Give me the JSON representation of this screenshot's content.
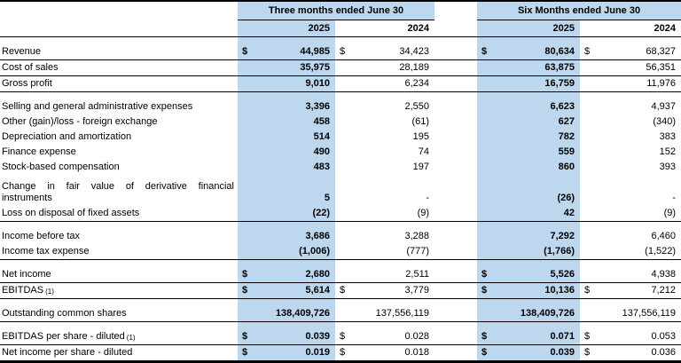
{
  "table": {
    "accent_color": "#BDD7EE",
    "col_groups": [
      {
        "title": "Three months ended June 30",
        "years": [
          "2025",
          "2024"
        ]
      },
      {
        "title": "Six Months ended June 30",
        "years": [
          "2025",
          "2024"
        ]
      }
    ],
    "rows": [
      {
        "spacer": true
      },
      {
        "label": "Revenue",
        "d": [
          "$",
          "$",
          "$",
          "$"
        ],
        "v": [
          "44,985",
          "34,423",
          "80,634",
          "68,327"
        ],
        "border": true
      },
      {
        "label": "Cost of sales",
        "v": [
          "35,975",
          "28,189",
          "63,875",
          "56,351"
        ],
        "border": true
      },
      {
        "label": "Gross profit",
        "v": [
          "9,010",
          "6,234",
          "16,759",
          "11,976"
        ],
        "border": true
      },
      {
        "spacer": true
      },
      {
        "label": "Selling and general administrative expenses",
        "v": [
          "3,396",
          "2,550",
          "6,623",
          "4,937"
        ]
      },
      {
        "label": "Other (gain)/loss - foreign exchange",
        "v": [
          "458",
          "(61)",
          "627",
          "(340)"
        ]
      },
      {
        "label": "Depreciation and amortization",
        "v": [
          "514",
          "195",
          "782",
          "383"
        ]
      },
      {
        "label": "Finance expense",
        "v": [
          "490",
          "74",
          "559",
          "152"
        ]
      },
      {
        "label": "Stock-based compensation",
        "v": [
          "483",
          "197",
          "860",
          "393"
        ]
      },
      {
        "label": "Change in fair value of derivative financial instruments",
        "tall": true,
        "v": [
          "5",
          "-",
          "(26)",
          "-"
        ]
      },
      {
        "label": "Loss on disposal of fixed assets",
        "v": [
          "(22)",
          "(9)",
          "42",
          "(9)"
        ],
        "border": true
      },
      {
        "spacer": true
      },
      {
        "label": "Income before tax",
        "v": [
          "3,686",
          "3,288",
          "7,292",
          "6,460"
        ]
      },
      {
        "label": "Income tax expense",
        "v": [
          "(1,006)",
          "(777)",
          "(1,766)",
          "(1,522)"
        ],
        "border": true
      },
      {
        "spacer": true
      },
      {
        "label": "Net income",
        "d": [
          "$",
          "",
          "$",
          ""
        ],
        "v": [
          "2,680",
          "2,511",
          "5,526",
          "4,938"
        ],
        "border": true
      },
      {
        "label": "EBITDAS",
        "sup": "(1)",
        "d": [
          "$",
          "$",
          "$",
          "$"
        ],
        "v": [
          "5,614",
          "3,779",
          "10,136",
          "7,212"
        ],
        "border": true
      },
      {
        "spacer": true
      },
      {
        "label": "Outstanding common shares",
        "v": [
          "138,409,726",
          "137,556,119",
          "138,409,726",
          "137,556,119"
        ],
        "border": true
      },
      {
        "spacer": true
      },
      {
        "label": "EBITDAS per share - diluted",
        "sup": "(1)",
        "d": [
          "$",
          "$",
          "$",
          "$"
        ],
        "v": [
          "0.039",
          "0.028",
          "0.071",
          "0.053"
        ],
        "border": true
      },
      {
        "label": "Net income per share - diluted",
        "d": [
          "$",
          "$",
          "$",
          "$"
        ],
        "v": [
          "0.019",
          "0.018",
          "0.039",
          "0.036"
        ]
      }
    ]
  }
}
